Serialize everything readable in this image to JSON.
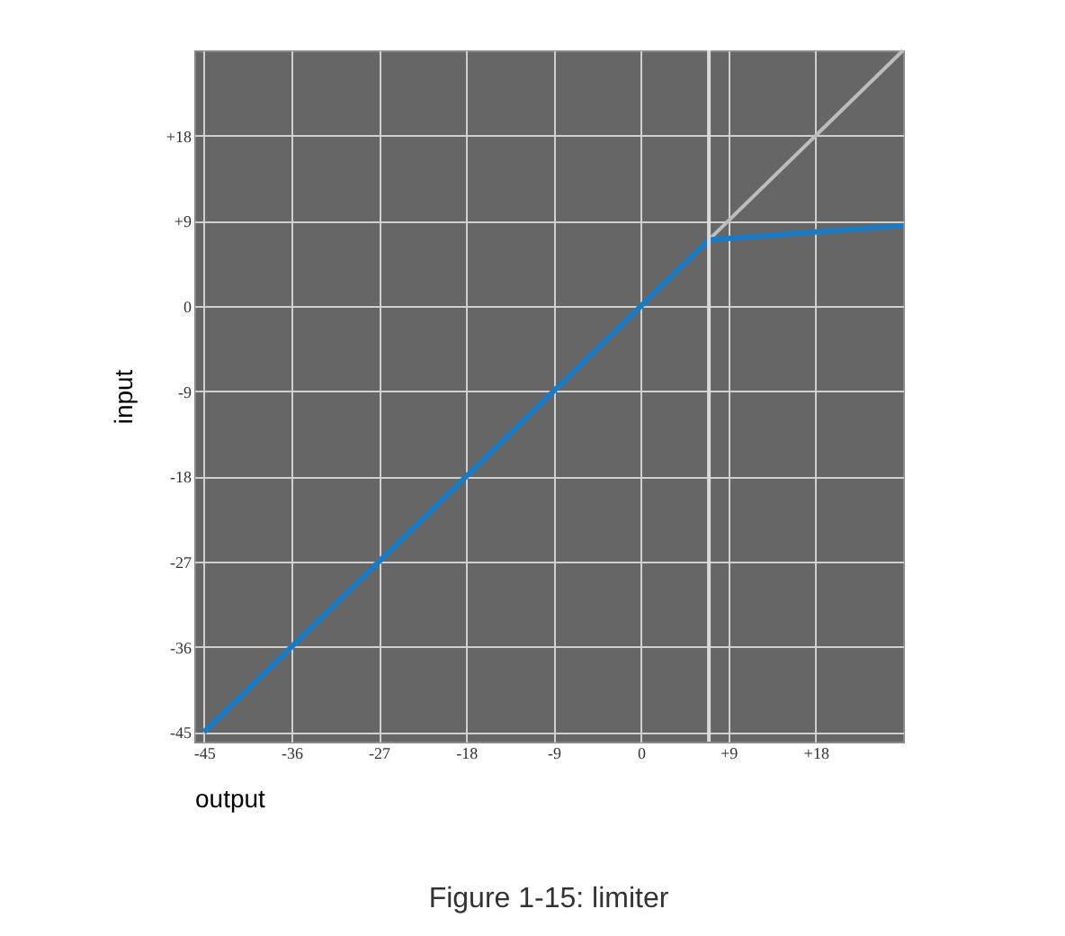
{
  "chart_data": {
    "type": "line",
    "title": "Figure 1-15: limiter",
    "xlabel": "output",
    "ylabel": "input",
    "xlim": [
      -46,
      27
    ],
    "ylim": [
      -46,
      27
    ],
    "xticks": [
      -45,
      -36,
      -27,
      -18,
      -9,
      0,
      {
        "value": 9,
        "label": "+9"
      },
      {
        "value": 18,
        "label": "+18"
      }
    ],
    "yticks": [
      -45,
      -36,
      -27,
      -18,
      -9,
      0,
      {
        "value": 9,
        "label": "+9"
      },
      {
        "value": 18,
        "label": "+18"
      }
    ],
    "grid": true,
    "legend": false,
    "marker": "none",
    "line_style": "solid",
    "series": [
      {
        "color": "#bdbdbd",
        "x": [
          7,
          27
        ],
        "values": [
          7,
          27
        ]
      },
      {
        "color": "#1a7bc4",
        "x": [
          -45,
          7,
          27
        ],
        "values": [
          -45,
          7,
          8.5
        ]
      }
    ],
    "ref_lines": [
      {
        "axis": "x",
        "value": 7,
        "color": "#d9d9d9",
        "line_style": "solid"
      }
    ]
  }
}
